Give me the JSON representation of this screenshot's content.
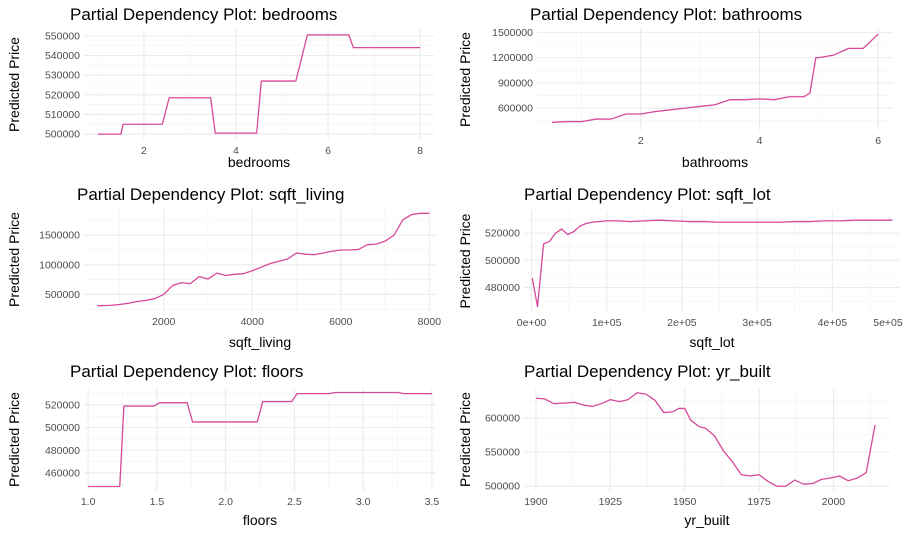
{
  "colors": {
    "line": "#d6499a",
    "grid_major": "#ebebeb",
    "grid_minor": "#f4f4f4",
    "tick_text": "#4d4d4d"
  },
  "chart_data": [
    {
      "type": "line",
      "title": "Partial Dependency Plot: bedrooms",
      "xlabel": "bedrooms",
      "ylabel": "Predicted Price",
      "xlim": [
        0.7,
        8.3
      ],
      "ylim": [
        497000,
        553500
      ],
      "xticks": [
        2,
        4,
        6,
        8
      ],
      "xtick_labels": [
        "2",
        "4",
        "6",
        "8"
      ],
      "yticks": [
        500000,
        510000,
        520000,
        530000,
        540000,
        550000
      ],
      "ytick_labels": [
        "500000",
        "510000",
        "520000",
        "530000",
        "540000",
        "550000"
      ],
      "grid": true,
      "series": [
        {
          "x": [
            1.0,
            1.5,
            1.55,
            2.4,
            2.55,
            3.45,
            3.55,
            4.45,
            4.55,
            5.3,
            5.55,
            6.45,
            6.55,
            8.0
          ],
          "y": [
            500000,
            500000,
            505000,
            505000,
            518500,
            518500,
            500500,
            500500,
            527000,
            527000,
            550500,
            550500,
            544000,
            544000
          ]
        }
      ]
    },
    {
      "type": "line",
      "title": "Partial Dependency Plot: bathrooms",
      "xlabel": "bathrooms",
      "ylabel": "Predicted Price",
      "xlim": [
        0.25,
        6.25
      ],
      "ylim": [
        340000,
        1540000
      ],
      "xticks": [
        2,
        4,
        6
      ],
      "xtick_labels": [
        "2",
        "4",
        "6"
      ],
      "yticks": [
        600000,
        900000,
        1200000,
        1500000
      ],
      "ytick_labels": [
        "600000",
        "900000",
        "1200000",
        "1500000"
      ],
      "grid": true,
      "series": [
        {
          "x": [
            0.5,
            0.75,
            1.0,
            1.25,
            1.5,
            1.75,
            2.0,
            2.25,
            2.5,
            2.75,
            3.0,
            3.25,
            3.5,
            3.75,
            4.0,
            4.25,
            4.5,
            4.75,
            4.85,
            4.95,
            5.0,
            5.25,
            5.5,
            5.75,
            6.0
          ],
          "y": [
            430000,
            440000,
            440000,
            470000,
            470000,
            530000,
            530000,
            560000,
            580000,
            600000,
            620000,
            640000,
            700000,
            700000,
            710000,
            700000,
            735000,
            735000,
            780000,
            1200000,
            1200000,
            1230000,
            1310000,
            1310000,
            1480000
          ]
        }
      ]
    },
    {
      "type": "line",
      "title": "Partial Dependency Plot: sqft_living",
      "xlabel": "sqft_living",
      "ylabel": "Predicted Price",
      "xlim": [
        200,
        8150
      ],
      "ylim": [
        220000,
        1960000
      ],
      "xticks": [
        2000,
        4000,
        6000,
        8000
      ],
      "xtick_labels": [
        "2000",
        "4000",
        "6000",
        "8000"
      ],
      "yticks": [
        500000,
        1000000,
        1500000
      ],
      "ytick_labels": [
        "500000",
        "1000000",
        "1500000"
      ],
      "grid": true,
      "series": [
        {
          "x": [
            500,
            800,
            1000,
            1200,
            1400,
            1600,
            1800,
            2000,
            2200,
            2400,
            2600,
            2800,
            3000,
            3200,
            3400,
            3600,
            3800,
            4000,
            4200,
            4400,
            4600,
            4800,
            5000,
            5200,
            5400,
            5600,
            5800,
            6000,
            6200,
            6400,
            6600,
            6800,
            7000,
            7200,
            7400,
            7600,
            7800,
            8000
          ],
          "y": [
            310000,
            315000,
            330000,
            350000,
            380000,
            400000,
            430000,
            500000,
            650000,
            700000,
            680000,
            800000,
            760000,
            860000,
            820000,
            840000,
            850000,
            900000,
            960000,
            1020000,
            1060000,
            1100000,
            1200000,
            1180000,
            1170000,
            1200000,
            1230000,
            1250000,
            1250000,
            1260000,
            1340000,
            1350000,
            1400000,
            1500000,
            1760000,
            1850000,
            1870000,
            1870000
          ]
        }
      ]
    },
    {
      "type": "line",
      "title": "Partial Dependency Plot: sqft_lot",
      "xlabel": "sqft_lot",
      "ylabel": "Predicted Price",
      "xlim": [
        -10000,
        490000
      ],
      "ylim": [
        462000,
        537000
      ],
      "xticks": [
        0,
        100000,
        200000,
        300000,
        400000,
        500000
      ],
      "xtick_labels": [
        "0e+00",
        "1e+05",
        "2e+05",
        "3e+05",
        "4e+05",
        "5e+05"
      ],
      "yticks": [
        480000,
        500000,
        520000
      ],
      "ytick_labels": [
        "480000",
        "500000",
        "520000"
      ],
      "grid": true,
      "series": [
        {
          "x": [
            1000,
            8000,
            16000,
            24000,
            32000,
            40000,
            48000,
            56000,
            64000,
            72000,
            80000,
            90000,
            100000,
            115000,
            130000,
            150000,
            170000,
            190000,
            210000,
            230000,
            250000,
            270000,
            290000,
            310000,
            330000,
            350000,
            370000,
            390000,
            410000,
            430000,
            450000,
            470000,
            480000
          ],
          "y": [
            487000,
            466000,
            512000,
            514000,
            520000,
            523000,
            519000,
            521000,
            525000,
            527000,
            528000,
            528500,
            529000,
            529000,
            528500,
            529000,
            529500,
            529000,
            528500,
            528500,
            528000,
            528000,
            528000,
            528000,
            528000,
            528500,
            528500,
            529000,
            529000,
            529500,
            529500,
            529500,
            529500
          ]
        }
      ]
    },
    {
      "type": "line",
      "title": "Partial Dependency Plot: floors",
      "xlabel": "floors",
      "ylabel": "Predicted Price",
      "xlim": [
        0.97,
        3.53
      ],
      "ylim": [
        444000,
        535000
      ],
      "xticks": [
        1.0,
        1.5,
        2.0,
        2.5,
        3.0,
        3.5
      ],
      "xtick_labels": [
        "1.0",
        "1.5",
        "2.0",
        "2.5",
        "3.0",
        "3.5"
      ],
      "yticks": [
        460000,
        480000,
        500000,
        520000
      ],
      "ytick_labels": [
        "460000",
        "480000",
        "500000",
        "520000"
      ],
      "grid": true,
      "series": [
        {
          "x": [
            1.0,
            1.23,
            1.26,
            1.48,
            1.52,
            1.72,
            1.76,
            2.23,
            2.27,
            2.48,
            2.52,
            2.75,
            2.8,
            3.25,
            3.3,
            3.5
          ],
          "y": [
            448000,
            448000,
            519000,
            519000,
            522000,
            522000,
            505000,
            505000,
            523000,
            523000,
            530000,
            530000,
            531000,
            531000,
            530000,
            530000
          ]
        }
      ]
    },
    {
      "type": "line",
      "title": "Partial Dependency Plot: yr_built",
      "xlabel": "yr_built",
      "ylabel": "Predicted Price",
      "xlim": [
        1896,
        2019
      ],
      "ylim": [
        493000,
        644000
      ],
      "xticks": [
        1900,
        1925,
        1950,
        1975,
        2000
      ],
      "xtick_labels": [
        "1900",
        "1925",
        "1950",
        "1975",
        "2000"
      ],
      "yticks": [
        500000,
        550000,
        600000
      ],
      "ytick_labels": [
        "500000",
        "550000",
        "600000"
      ],
      "grid": true,
      "series": [
        {
          "x": [
            1900,
            1903,
            1906,
            1910,
            1913,
            1916,
            1919,
            1922,
            1925,
            1928,
            1931,
            1934,
            1937,
            1940,
            1943,
            1946,
            1948,
            1950,
            1952,
            1955,
            1957,
            1960,
            1963,
            1966,
            1969,
            1972,
            1975,
            1978,
            1981,
            1984,
            1987,
            1990,
            1993,
            1996,
            1999,
            2002,
            2005,
            2008,
            2011,
            2014
          ],
          "y": [
            629000,
            628000,
            621000,
            622000,
            623000,
            619000,
            617000,
            621000,
            627000,
            624000,
            627000,
            637000,
            635000,
            626000,
            608000,
            609000,
            614000,
            614000,
            597000,
            587000,
            585000,
            574000,
            552000,
            536000,
            517000,
            515000,
            517000,
            507000,
            500000,
            500000,
            509000,
            503000,
            504000,
            510000,
            512000,
            515000,
            508000,
            512000,
            520000,
            590000
          ]
        }
      ]
    }
  ]
}
